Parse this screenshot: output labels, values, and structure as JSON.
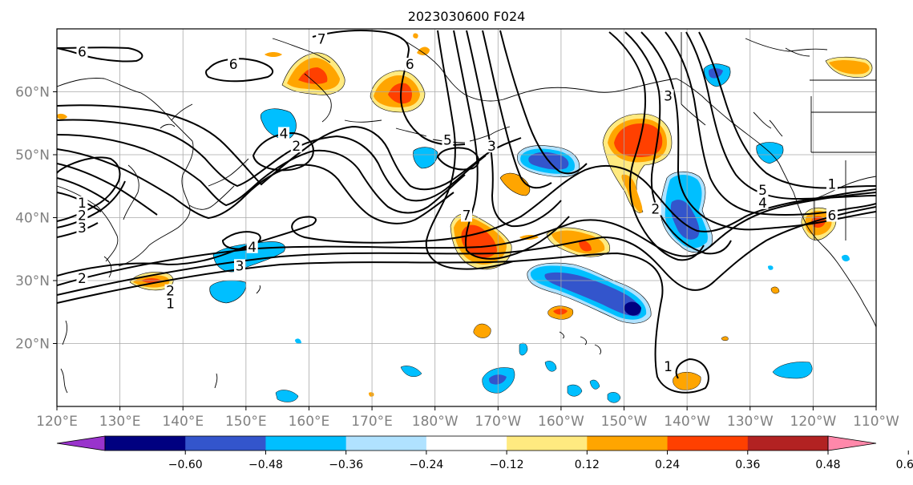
{
  "title": "2023030600 F024",
  "map": {
    "projection": "PlateCarree",
    "lon_range": [
      120,
      250
    ],
    "lat_range": [
      10,
      70
    ],
    "gridlines": true,
    "lon_ticks": [
      {
        "lon": 120,
        "label": "120°E"
      },
      {
        "lon": 130,
        "label": "130°E"
      },
      {
        "lon": 140,
        "label": "140°E"
      },
      {
        "lon": 150,
        "label": "150°E"
      },
      {
        "lon": 160,
        "label": "160°E"
      },
      {
        "lon": 170,
        "label": "170°E"
      },
      {
        "lon": 180,
        "label": "180°W"
      },
      {
        "lon": 190,
        "label": "170°W"
      },
      {
        "lon": 200,
        "label": "160°W"
      },
      {
        "lon": 210,
        "label": "150°W"
      },
      {
        "lon": 220,
        "label": "140°W"
      },
      {
        "lon": 230,
        "label": "130°W"
      },
      {
        "lon": 240,
        "label": "120°W"
      },
      {
        "lon": 250,
        "label": "110°W"
      }
    ],
    "lat_ticks": [
      {
        "lat": 20,
        "label": "20°N"
      },
      {
        "lat": 30,
        "label": "30°N"
      },
      {
        "lat": 40,
        "label": "40°N"
      },
      {
        "lat": 50,
        "label": "50°N"
      },
      {
        "lat": 60,
        "label": "60°N"
      }
    ]
  },
  "colorbar": {
    "extend": "both",
    "levels": [
      -0.72,
      -0.6,
      -0.48,
      -0.36,
      -0.24,
      -0.12,
      0.12,
      0.24,
      0.36,
      0.48,
      0.6,
      0.72
    ],
    "colors": [
      "#9933cc",
      "#000080",
      "#3355cc",
      "#00bfff",
      "#b0e2ff",
      "#ffffff",
      "#ffea80",
      "#ffa500",
      "#ff4000",
      "#b22222",
      "#ff88aa"
    ],
    "tick_labels": [
      "−0.60",
      "−0.48",
      "−0.36",
      "−0.24",
      "−0.12",
      "0.12",
      "0.24",
      "0.36",
      "0.48",
      "0.60"
    ]
  },
  "contour_labels": [
    {
      "text": "6",
      "lon": 124,
      "lat": 66
    },
    {
      "text": "6",
      "lon": 148,
      "lat": 64
    },
    {
      "text": "7",
      "lon": 162,
      "lat": 68
    },
    {
      "text": "6",
      "lon": 176,
      "lat": 64
    },
    {
      "text": "5",
      "lon": 182,
      "lat": 52
    },
    {
      "text": "3",
      "lon": 189,
      "lat": 51
    },
    {
      "text": "2",
      "lon": 158,
      "lat": 51
    },
    {
      "text": "4",
      "lon": 156,
      "lat": 53
    },
    {
      "text": "3",
      "lon": 217,
      "lat": 59
    },
    {
      "text": "1",
      "lon": 124,
      "lat": 42
    },
    {
      "text": "2",
      "lon": 124,
      "lat": 40
    },
    {
      "text": "3",
      "lon": 124,
      "lat": 38
    },
    {
      "text": "4",
      "lon": 151,
      "lat": 35
    },
    {
      "text": "3",
      "lon": 149,
      "lat": 32
    },
    {
      "text": "2",
      "lon": 124,
      "lat": 30
    },
    {
      "text": "2",
      "lon": 138,
      "lat": 28
    },
    {
      "text": "1",
      "lon": 138,
      "lat": 26
    },
    {
      "text": "7",
      "lon": 185,
      "lat": 40
    },
    {
      "text": "2",
      "lon": 215,
      "lat": 41
    },
    {
      "text": "1",
      "lon": 217,
      "lat": 16
    },
    {
      "text": "4",
      "lon": 232,
      "lat": 42
    },
    {
      "text": "5",
      "lon": 232,
      "lat": 44
    },
    {
      "text": "6",
      "lon": 243,
      "lat": 40
    },
    {
      "text": "1",
      "lon": 243,
      "lat": 45
    }
  ]
}
